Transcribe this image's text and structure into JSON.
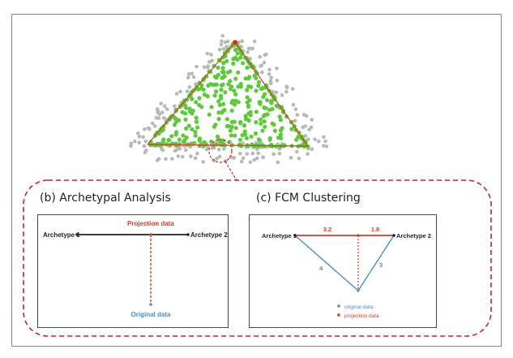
{
  "panel_b": {
    "title": "(b) Archetypal Analysis",
    "archetype1": "Archetype 1",
    "archetype2": "Archetype 2",
    "projection_label": "Projection data",
    "original_label": "Original data"
  },
  "panel_c": {
    "title": "(c) FCM Clustering",
    "archetype1": "Archetype 1",
    "archetype2": "Archetype 2",
    "dist_left": "3.2",
    "dist_right": "1.8",
    "side_left": "4",
    "side_right": "3",
    "legend_original": "original data",
    "legend_projection": "projection data"
  },
  "colors": {
    "green": "#5ec93c",
    "grey": "#b8b8b8",
    "red": "#d43c2f",
    "blue": "#4a8fc4",
    "dark": "#222222"
  }
}
